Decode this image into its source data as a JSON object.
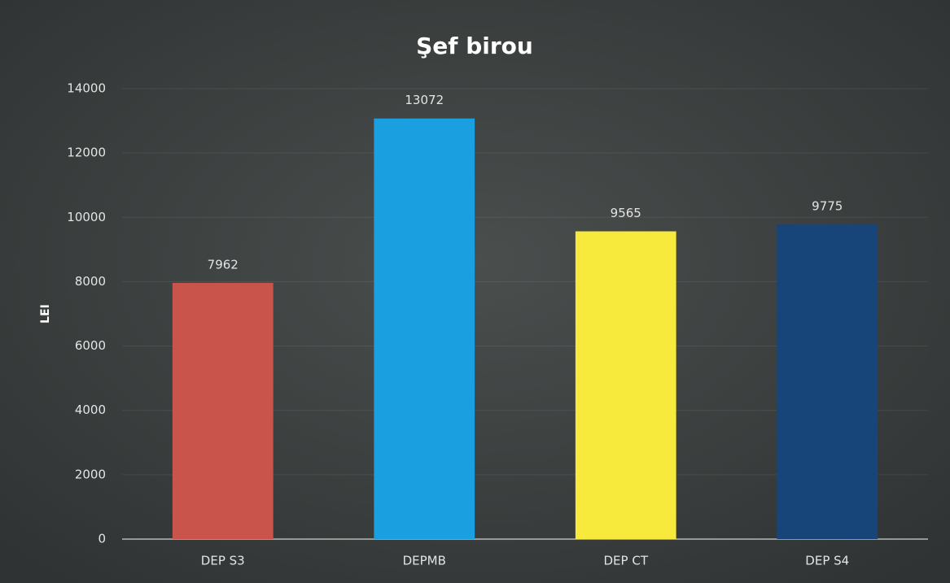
{
  "chart_data": {
    "type": "bar",
    "title": "Şef birou",
    "y_label": "LEI",
    "categories": [
      "DEP S3",
      "DEPMB",
      "DEP CT",
      "DEP S4"
    ],
    "values": [
      7962,
      13072,
      9565,
      9775
    ],
    "colors": [
      "#c9544b",
      "#1a9fe0",
      "#f7ea3c",
      "#17457a"
    ],
    "ylim": [
      0,
      14000
    ],
    "yticks": [
      0,
      2000,
      4000,
      6000,
      8000,
      10000,
      12000,
      14000
    ],
    "grid": true
  }
}
